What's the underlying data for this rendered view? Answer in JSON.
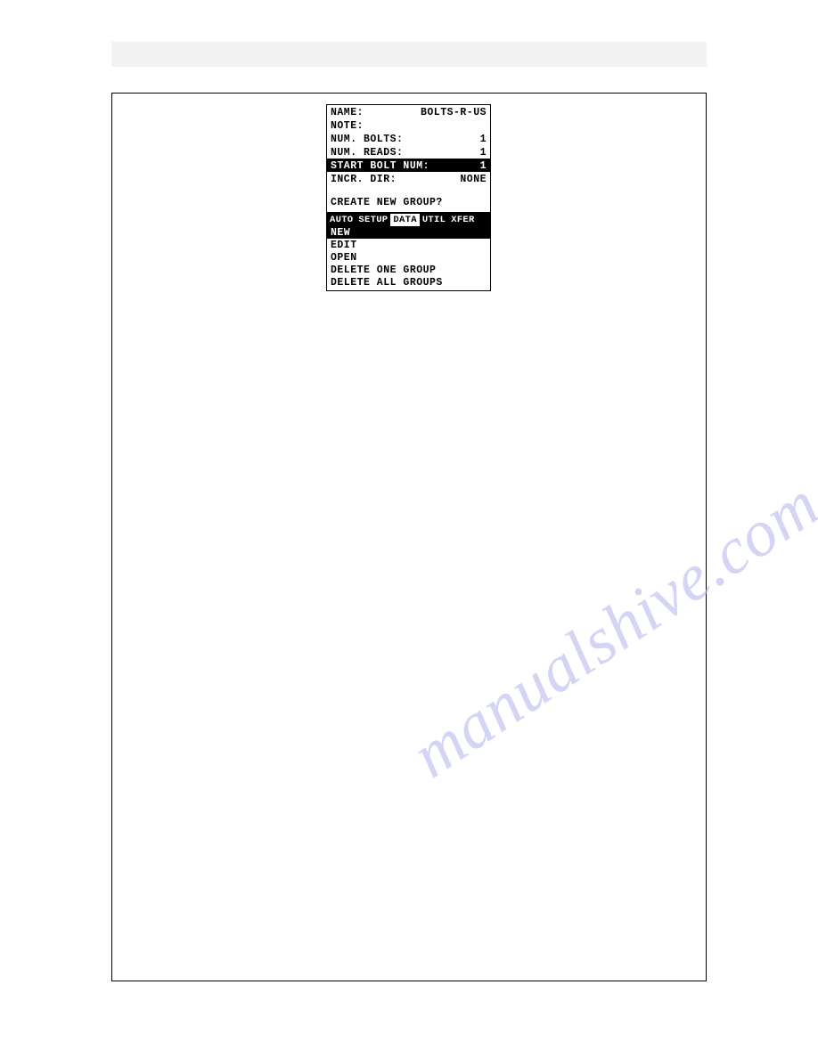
{
  "device": {
    "fields": [
      {
        "label": "NAME:",
        "value": "BOLTS-R-US",
        "highlighted": false
      },
      {
        "label": "NOTE:",
        "value": "",
        "highlighted": false
      },
      {
        "label": "NUM. BOLTS:",
        "value": "1",
        "highlighted": false
      },
      {
        "label": "NUM. READS:",
        "value": "1",
        "highlighted": false
      },
      {
        "label": "START BOLT NUM:",
        "value": "1",
        "highlighted": true
      },
      {
        "label": "INCR. DIR:",
        "value": "NONE",
        "highlighted": false
      }
    ],
    "prompt": "CREATE NEW GROUP?",
    "tabs": [
      {
        "label": "AUTO",
        "active": false
      },
      {
        "label": "SETUP",
        "active": false
      },
      {
        "label": "DATA",
        "active": true
      },
      {
        "label": "UTIL",
        "active": false
      },
      {
        "label": "XFER",
        "active": false
      }
    ],
    "menu_items": [
      {
        "label": "NEW",
        "highlighted": true
      },
      {
        "label": "EDIT",
        "highlighted": false
      },
      {
        "label": "OPEN",
        "highlighted": false
      },
      {
        "label": "DELETE ONE GROUP",
        "highlighted": false
      },
      {
        "label": "DELETE ALL GROUPS",
        "highlighted": false
      }
    ]
  },
  "watermark": "manualshive.com",
  "colors": {
    "page_bg": "#ffffff",
    "top_bar_bg": "#f2f2f2",
    "border": "#000000",
    "highlight_bg": "#000000",
    "highlight_fg": "#ffffff",
    "watermark_color": "#b8b8f0"
  }
}
